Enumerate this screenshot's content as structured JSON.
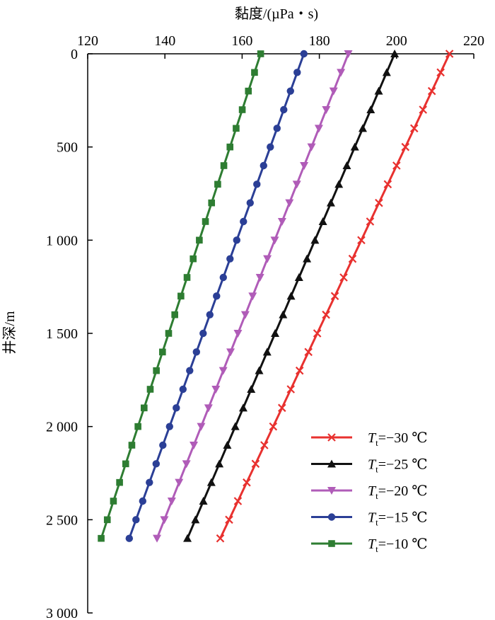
{
  "chart_data": {
    "type": "line",
    "title": "",
    "xlabel": "黏度/(µPa・s)",
    "ylabel": "井深/m",
    "xlim": [
      120,
      220
    ],
    "ylim": [
      0,
      3000
    ],
    "y_inverted": true,
    "x_axis_position": "top",
    "grid": false,
    "legend_placement": "bottom-right",
    "xticks": [
      120,
      140,
      160,
      180,
      200,
      220
    ],
    "xtick_labels": [
      "120",
      "140",
      "160",
      "180",
      "200",
      "220"
    ],
    "yticks": [
      0,
      500,
      1000,
      1500,
      2000,
      2500,
      3000
    ],
    "ytick_labels": [
      "0",
      "500",
      "1 000",
      "1 500",
      "2 000",
      "2 500",
      "3 000"
    ],
    "series": [
      {
        "name": "Tt=−30 ℃",
        "label_main": "T",
        "label_sub": "t",
        "label_rest": "=−30 ℃",
        "color": "#e8312f",
        "marker": "x",
        "x_top": 213.7,
        "x_bottom": 153.2,
        "depth_end": 2650
      },
      {
        "name": "Tt=−25 ℃",
        "label_main": "T",
        "label_sub": "t",
        "label_rest": "=−25 ℃",
        "color": "#111111",
        "marker": "triangle-up",
        "x_top": 199.5,
        "x_bottom": 144.8,
        "depth_end": 2650
      },
      {
        "name": "Tt=−20 ℃",
        "label_main": "T",
        "label_sub": "t",
        "label_rest": "=−20 ℃",
        "color": "#b05cb8",
        "marker": "triangle-down",
        "x_top": 187.5,
        "x_bottom": 137.0,
        "depth_end": 2650
      },
      {
        "name": "Tt=−15 ℃",
        "label_main": "T",
        "label_sub": "t",
        "label_rest": "=−15 ℃",
        "color": "#2b3f96",
        "marker": "circle",
        "x_top": 176.0,
        "x_bottom": 129.9,
        "depth_end": 2650
      },
      {
        "name": "Tt=−10 ℃",
        "label_main": "T",
        "label_sub": "t",
        "label_rest": "=−10 ℃",
        "color": "#2e7d32",
        "marker": "square",
        "x_top": 164.8,
        "x_bottom": 122.7,
        "depth_end": 2650
      }
    ],
    "depth_step": 100
  }
}
